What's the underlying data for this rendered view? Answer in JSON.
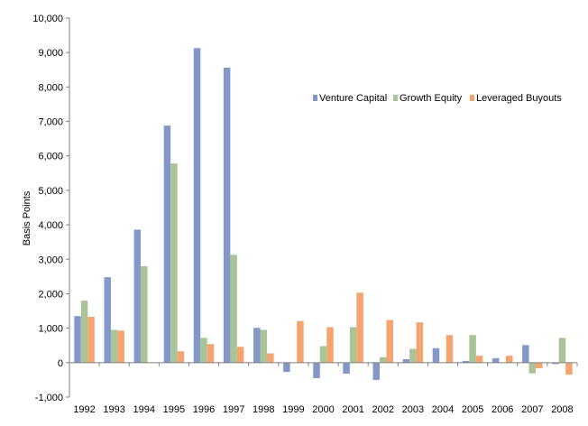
{
  "chart_data": {
    "type": "bar",
    "title": "",
    "xlabel": "",
    "ylabel": "Basis Points",
    "ylim": [
      -1000,
      10000
    ],
    "yticks": [
      -1000,
      0,
      1000,
      2000,
      3000,
      4000,
      5000,
      6000,
      7000,
      8000,
      9000,
      10000
    ],
    "ytick_labels": [
      "-1,000",
      "0",
      "1,000",
      "2,000",
      "3,000",
      "4,000",
      "5,000",
      "6,000",
      "7,000",
      "8,000",
      "9,000",
      "10,000"
    ],
    "grid": false,
    "legend_position": "upper-right",
    "categories": [
      "1992",
      "1993",
      "1994",
      "1995",
      "1996",
      "1997",
      "1998",
      "1999",
      "2000",
      "2001",
      "2002",
      "2003",
      "2004",
      "2005",
      "2006",
      "2007",
      "2008"
    ],
    "series": [
      {
        "name": "Venture Capital",
        "color": "#8497C9",
        "values": [
          1350,
          2480,
          3860,
          6880,
          9130,
          8560,
          1010,
          -270,
          -450,
          -320,
          -500,
          100,
          420,
          50,
          130,
          510,
          -40
        ]
      },
      {
        "name": "Growth Equity",
        "color": "#A9C496",
        "values": [
          1800,
          950,
          2800,
          5780,
          720,
          3130,
          950,
          0,
          480,
          1030,
          160,
          400,
          0,
          800,
          0,
          -310,
          720
        ]
      },
      {
        "name": "Leveraged Buyouts",
        "color": "#F5A46F",
        "values": [
          1330,
          930,
          0,
          330,
          540,
          460,
          270,
          1210,
          1030,
          2030,
          1240,
          1170,
          800,
          200,
          200,
          -160,
          -350
        ]
      }
    ]
  }
}
